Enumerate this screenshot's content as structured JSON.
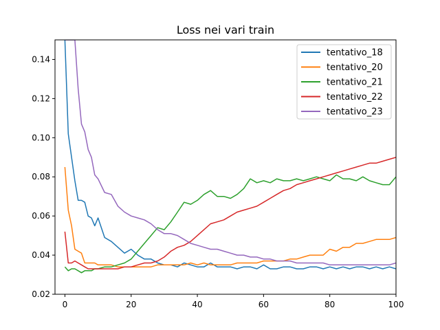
{
  "chart_data": {
    "type": "line",
    "title": "Loss nei vari train",
    "xlabel": "",
    "ylabel": "",
    "xlim": [
      -3,
      100
    ],
    "ylim": [
      0.02,
      0.15
    ],
    "xticks": [
      0,
      20,
      40,
      60,
      80,
      100
    ],
    "yticks": [
      0.02,
      0.04,
      0.06,
      0.08,
      0.1,
      0.12,
      0.14
    ],
    "xtick_labels": [
      "0",
      "20",
      "40",
      "60",
      "80",
      "100"
    ],
    "ytick_labels": [
      "0.02",
      "0.04",
      "0.06",
      "0.08",
      "0.10",
      "0.12",
      "0.14"
    ],
    "grid": false,
    "legend_position": "top-right",
    "series": [
      {
        "name": "tentativo_18",
        "color": "#1f77b4",
        "x": [
          0,
          1,
          2,
          3,
          4,
          5,
          6,
          7,
          8,
          9,
          10,
          12,
          14,
          16,
          18,
          20,
          22,
          24,
          26,
          28,
          30,
          32,
          34,
          36,
          38,
          40,
          42,
          44,
          46,
          48,
          50,
          52,
          54,
          56,
          58,
          60,
          62,
          64,
          66,
          68,
          70,
          72,
          74,
          76,
          78,
          80,
          82,
          84,
          86,
          88,
          90,
          92,
          94,
          96,
          98,
          100
        ],
        "values": [
          0.15,
          0.102,
          0.09,
          0.078,
          0.068,
          0.068,
          0.067,
          0.06,
          0.059,
          0.055,
          0.059,
          0.049,
          0.047,
          0.044,
          0.041,
          0.043,
          0.04,
          0.038,
          0.038,
          0.036,
          0.035,
          0.035,
          0.034,
          0.036,
          0.035,
          0.034,
          0.034,
          0.036,
          0.034,
          0.034,
          0.034,
          0.033,
          0.034,
          0.034,
          0.033,
          0.035,
          0.033,
          0.033,
          0.034,
          0.034,
          0.033,
          0.033,
          0.034,
          0.034,
          0.033,
          0.034,
          0.033,
          0.034,
          0.033,
          0.034,
          0.034,
          0.033,
          0.034,
          0.033,
          0.034,
          0.033
        ]
      },
      {
        "name": "tentativo_20",
        "color": "#ff7f0e",
        "x": [
          0,
          1,
          2,
          3,
          4,
          5,
          6,
          7,
          8,
          9,
          10,
          12,
          14,
          16,
          18,
          20,
          22,
          24,
          26,
          28,
          30,
          32,
          34,
          36,
          38,
          40,
          42,
          44,
          46,
          48,
          50,
          52,
          54,
          56,
          58,
          60,
          62,
          64,
          66,
          68,
          70,
          72,
          74,
          76,
          78,
          80,
          82,
          84,
          86,
          88,
          90,
          92,
          94,
          96,
          98,
          100
        ],
        "values": [
          0.085,
          0.063,
          0.055,
          0.043,
          0.042,
          0.041,
          0.036,
          0.036,
          0.036,
          0.036,
          0.035,
          0.035,
          0.035,
          0.034,
          0.034,
          0.034,
          0.034,
          0.034,
          0.034,
          0.035,
          0.035,
          0.035,
          0.035,
          0.035,
          0.036,
          0.035,
          0.036,
          0.035,
          0.035,
          0.035,
          0.035,
          0.036,
          0.036,
          0.036,
          0.036,
          0.037,
          0.037,
          0.037,
          0.037,
          0.038,
          0.038,
          0.039,
          0.04,
          0.04,
          0.04,
          0.043,
          0.042,
          0.044,
          0.044,
          0.046,
          0.046,
          0.047,
          0.048,
          0.048,
          0.048,
          0.049
        ]
      },
      {
        "name": "tentativo_21",
        "color": "#2ca02c",
        "x": [
          0,
          1,
          2,
          3,
          4,
          5,
          6,
          7,
          8,
          9,
          10,
          12,
          14,
          16,
          18,
          20,
          22,
          24,
          26,
          28,
          30,
          32,
          34,
          36,
          38,
          40,
          42,
          44,
          46,
          48,
          50,
          52,
          54,
          56,
          58,
          60,
          62,
          64,
          66,
          68,
          70,
          72,
          74,
          76,
          78,
          80,
          82,
          84,
          86,
          88,
          90,
          92,
          94,
          96,
          98,
          100
        ],
        "values": [
          0.034,
          0.032,
          0.033,
          0.033,
          0.032,
          0.031,
          0.032,
          0.032,
          0.032,
          0.033,
          0.033,
          0.034,
          0.034,
          0.035,
          0.036,
          0.038,
          0.042,
          0.046,
          0.05,
          0.054,
          0.053,
          0.057,
          0.062,
          0.067,
          0.066,
          0.068,
          0.071,
          0.073,
          0.07,
          0.07,
          0.069,
          0.071,
          0.074,
          0.079,
          0.077,
          0.078,
          0.077,
          0.079,
          0.078,
          0.078,
          0.079,
          0.078,
          0.079,
          0.08,
          0.079,
          0.078,
          0.081,
          0.079,
          0.079,
          0.078,
          0.08,
          0.078,
          0.077,
          0.076,
          0.076,
          0.08
        ]
      },
      {
        "name": "tentativo_22",
        "color": "#d62728",
        "x": [
          0,
          1,
          2,
          3,
          4,
          5,
          6,
          7,
          8,
          9,
          10,
          12,
          14,
          16,
          18,
          20,
          22,
          24,
          26,
          28,
          30,
          32,
          34,
          36,
          38,
          40,
          42,
          44,
          46,
          48,
          50,
          52,
          54,
          56,
          58,
          60,
          62,
          64,
          66,
          68,
          70,
          72,
          74,
          76,
          78,
          80,
          82,
          84,
          86,
          88,
          90,
          92,
          94,
          96,
          98,
          100
        ],
        "values": [
          0.052,
          0.036,
          0.036,
          0.037,
          0.036,
          0.035,
          0.034,
          0.033,
          0.033,
          0.033,
          0.033,
          0.033,
          0.033,
          0.033,
          0.034,
          0.034,
          0.035,
          0.036,
          0.036,
          0.037,
          0.039,
          0.042,
          0.044,
          0.045,
          0.047,
          0.05,
          0.053,
          0.056,
          0.057,
          0.058,
          0.06,
          0.062,
          0.063,
          0.064,
          0.065,
          0.067,
          0.069,
          0.071,
          0.073,
          0.074,
          0.076,
          0.077,
          0.078,
          0.079,
          0.08,
          0.081,
          0.082,
          0.083,
          0.084,
          0.085,
          0.086,
          0.087,
          0.087,
          0.088,
          0.089,
          0.09
        ]
      },
      {
        "name": "tentativo_23",
        "color": "#9467bd",
        "x": [
          0,
          1,
          2,
          3,
          4,
          5,
          6,
          7,
          8,
          9,
          10,
          12,
          14,
          16,
          18,
          20,
          22,
          24,
          26,
          28,
          30,
          32,
          34,
          36,
          38,
          40,
          42,
          44,
          46,
          48,
          50,
          52,
          54,
          56,
          58,
          60,
          62,
          64,
          66,
          68,
          70,
          72,
          74,
          76,
          78,
          80,
          82,
          84,
          86,
          88,
          90,
          92,
          94,
          96,
          98,
          100
        ],
        "values": [
          0.15,
          0.15,
          0.15,
          0.15,
          0.125,
          0.107,
          0.103,
          0.094,
          0.09,
          0.081,
          0.079,
          0.072,
          0.071,
          0.065,
          0.062,
          0.06,
          0.059,
          0.058,
          0.056,
          0.053,
          0.051,
          0.051,
          0.05,
          0.048,
          0.046,
          0.045,
          0.044,
          0.043,
          0.043,
          0.042,
          0.041,
          0.04,
          0.04,
          0.039,
          0.039,
          0.038,
          0.038,
          0.037,
          0.037,
          0.037,
          0.036,
          0.036,
          0.036,
          0.036,
          0.036,
          0.035,
          0.035,
          0.035,
          0.035,
          0.035,
          0.035,
          0.035,
          0.035,
          0.035,
          0.035,
          0.036
        ]
      }
    ]
  }
}
